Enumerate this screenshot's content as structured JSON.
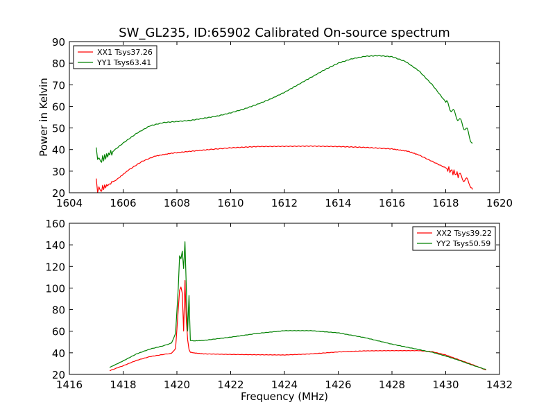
{
  "chart_data": [
    {
      "type": "line",
      "title": "SW_GL235, ID:65902 Calibrated On-source spectrum",
      "xlabel": "",
      "ylabel": "Power in Kelvin",
      "xlim": [
        1604,
        1620
      ],
      "ylim": [
        20,
        90
      ],
      "xticks": [
        "1604",
        "1606",
        "1608",
        "1610",
        "1612",
        "1614",
        "1616",
        "1618",
        "1620"
      ],
      "yticks": [
        "20",
        "30",
        "40",
        "50",
        "60",
        "70",
        "80",
        "90"
      ],
      "grid": false,
      "legend_position": "top-left",
      "series": [
        {
          "name": "XX1 Tsys37.26",
          "color": "#ff0000",
          "x": [
            1605.0,
            1605.05,
            1605.1,
            1605.2,
            1605.5,
            1605.8,
            1606.2,
            1606.7,
            1607.2,
            1607.8,
            1608.5,
            1609.2,
            1610.0,
            1611.0,
            1612.0,
            1613.0,
            1614.0,
            1615.0,
            1616.0,
            1616.6,
            1617.0,
            1617.5,
            1618.0,
            1618.5,
            1618.9,
            1619.0
          ],
          "y": [
            26.5,
            21.5,
            22.0,
            22.0,
            24.0,
            26.5,
            30.5,
            34.5,
            37.0,
            38.3,
            39.2,
            40.0,
            40.8,
            41.4,
            41.5,
            41.6,
            41.4,
            41.0,
            40.3,
            39.2,
            37.5,
            34.5,
            31.5,
            28.0,
            24.5,
            21.5
          ]
        },
        {
          "name": "YY1 Tsys63.41",
          "color": "#008000",
          "x": [
            1605.0,
            1605.05,
            1605.1,
            1605.2,
            1605.5,
            1606.0,
            1606.5,
            1607.0,
            1607.5,
            1608.0,
            1608.5,
            1609.0,
            1609.5,
            1610.0,
            1610.5,
            1611.0,
            1611.5,
            1612.0,
            1612.5,
            1613.0,
            1613.5,
            1614.0,
            1614.5,
            1615.0,
            1615.5,
            1616.0,
            1616.5,
            1617.0,
            1617.5,
            1618.0,
            1618.4,
            1618.8,
            1619.0
          ],
          "y": [
            41.5,
            36.5,
            35.0,
            35.5,
            38.0,
            43.0,
            47.5,
            51.0,
            52.5,
            53.0,
            53.5,
            54.5,
            55.5,
            57.0,
            58.8,
            61.0,
            63.5,
            66.5,
            70.0,
            73.5,
            77.0,
            80.0,
            82.0,
            83.2,
            83.5,
            83.0,
            80.8,
            76.5,
            70.0,
            62.0,
            55.5,
            48.5,
            43.0
          ]
        }
      ]
    },
    {
      "type": "line",
      "title": "",
      "xlabel": "Frequency (MHz)",
      "ylabel": "",
      "xlim": [
        1416,
        1432
      ],
      "ylim": [
        20,
        160
      ],
      "xticks": [
        "1416",
        "1418",
        "1420",
        "1422",
        "1424",
        "1426",
        "1428",
        "1430",
        "1432"
      ],
      "yticks": [
        "20",
        "40",
        "60",
        "80",
        "100",
        "120",
        "140",
        "160"
      ],
      "grid": false,
      "legend_position": "top-right",
      "series": [
        {
          "name": "XX2 Tsys39.22",
          "color": "#ff0000",
          "x": [
            1417.5,
            1418.0,
            1418.5,
            1419.0,
            1419.5,
            1419.8,
            1419.95,
            1420.05,
            1420.1,
            1420.15,
            1420.2,
            1420.25,
            1420.3,
            1420.35,
            1420.4,
            1420.45,
            1420.5,
            1420.6,
            1421.0,
            1422.0,
            1423.0,
            1424.0,
            1425.0,
            1426.0,
            1427.0,
            1428.0,
            1429.0,
            1429.5,
            1430.0,
            1430.5,
            1431.0,
            1431.5
          ],
          "y": [
            23.5,
            28.0,
            33.0,
            36.5,
            38.5,
            39.5,
            44.0,
            80.0,
            98.0,
            101.0,
            95.0,
            60.0,
            107.0,
            70.0,
            52.0,
            43.0,
            40.5,
            40.0,
            39.0,
            38.5,
            38.2,
            38.0,
            39.0,
            40.8,
            41.8,
            42.0,
            42.0,
            41.0,
            38.0,
            33.5,
            29.0,
            24.0
          ]
        },
        {
          "name": "YY2 Tsys50.59",
          "color": "#008000",
          "x": [
            1417.5,
            1418.0,
            1418.5,
            1419.0,
            1419.5,
            1419.8,
            1419.95,
            1420.05,
            1420.1,
            1420.15,
            1420.2,
            1420.25,
            1420.3,
            1420.35,
            1420.4,
            1420.45,
            1420.5,
            1420.6,
            1421.0,
            1422.0,
            1423.0,
            1424.0,
            1425.0,
            1426.0,
            1427.0,
            1428.0,
            1429.0,
            1429.5,
            1430.0,
            1430.5,
            1431.0,
            1431.5
          ],
          "y": [
            26.5,
            32.5,
            39.0,
            43.5,
            46.5,
            49.0,
            58.0,
            100.0,
            130.0,
            127.0,
            134.0,
            118.0,
            143.0,
            100.0,
            60.0,
            93.0,
            51.5,
            51.0,
            51.5,
            54.5,
            58.0,
            60.5,
            60.5,
            58.5,
            54.0,
            48.0,
            43.0,
            40.5,
            37.0,
            33.0,
            28.5,
            24.5
          ]
        }
      ]
    }
  ]
}
